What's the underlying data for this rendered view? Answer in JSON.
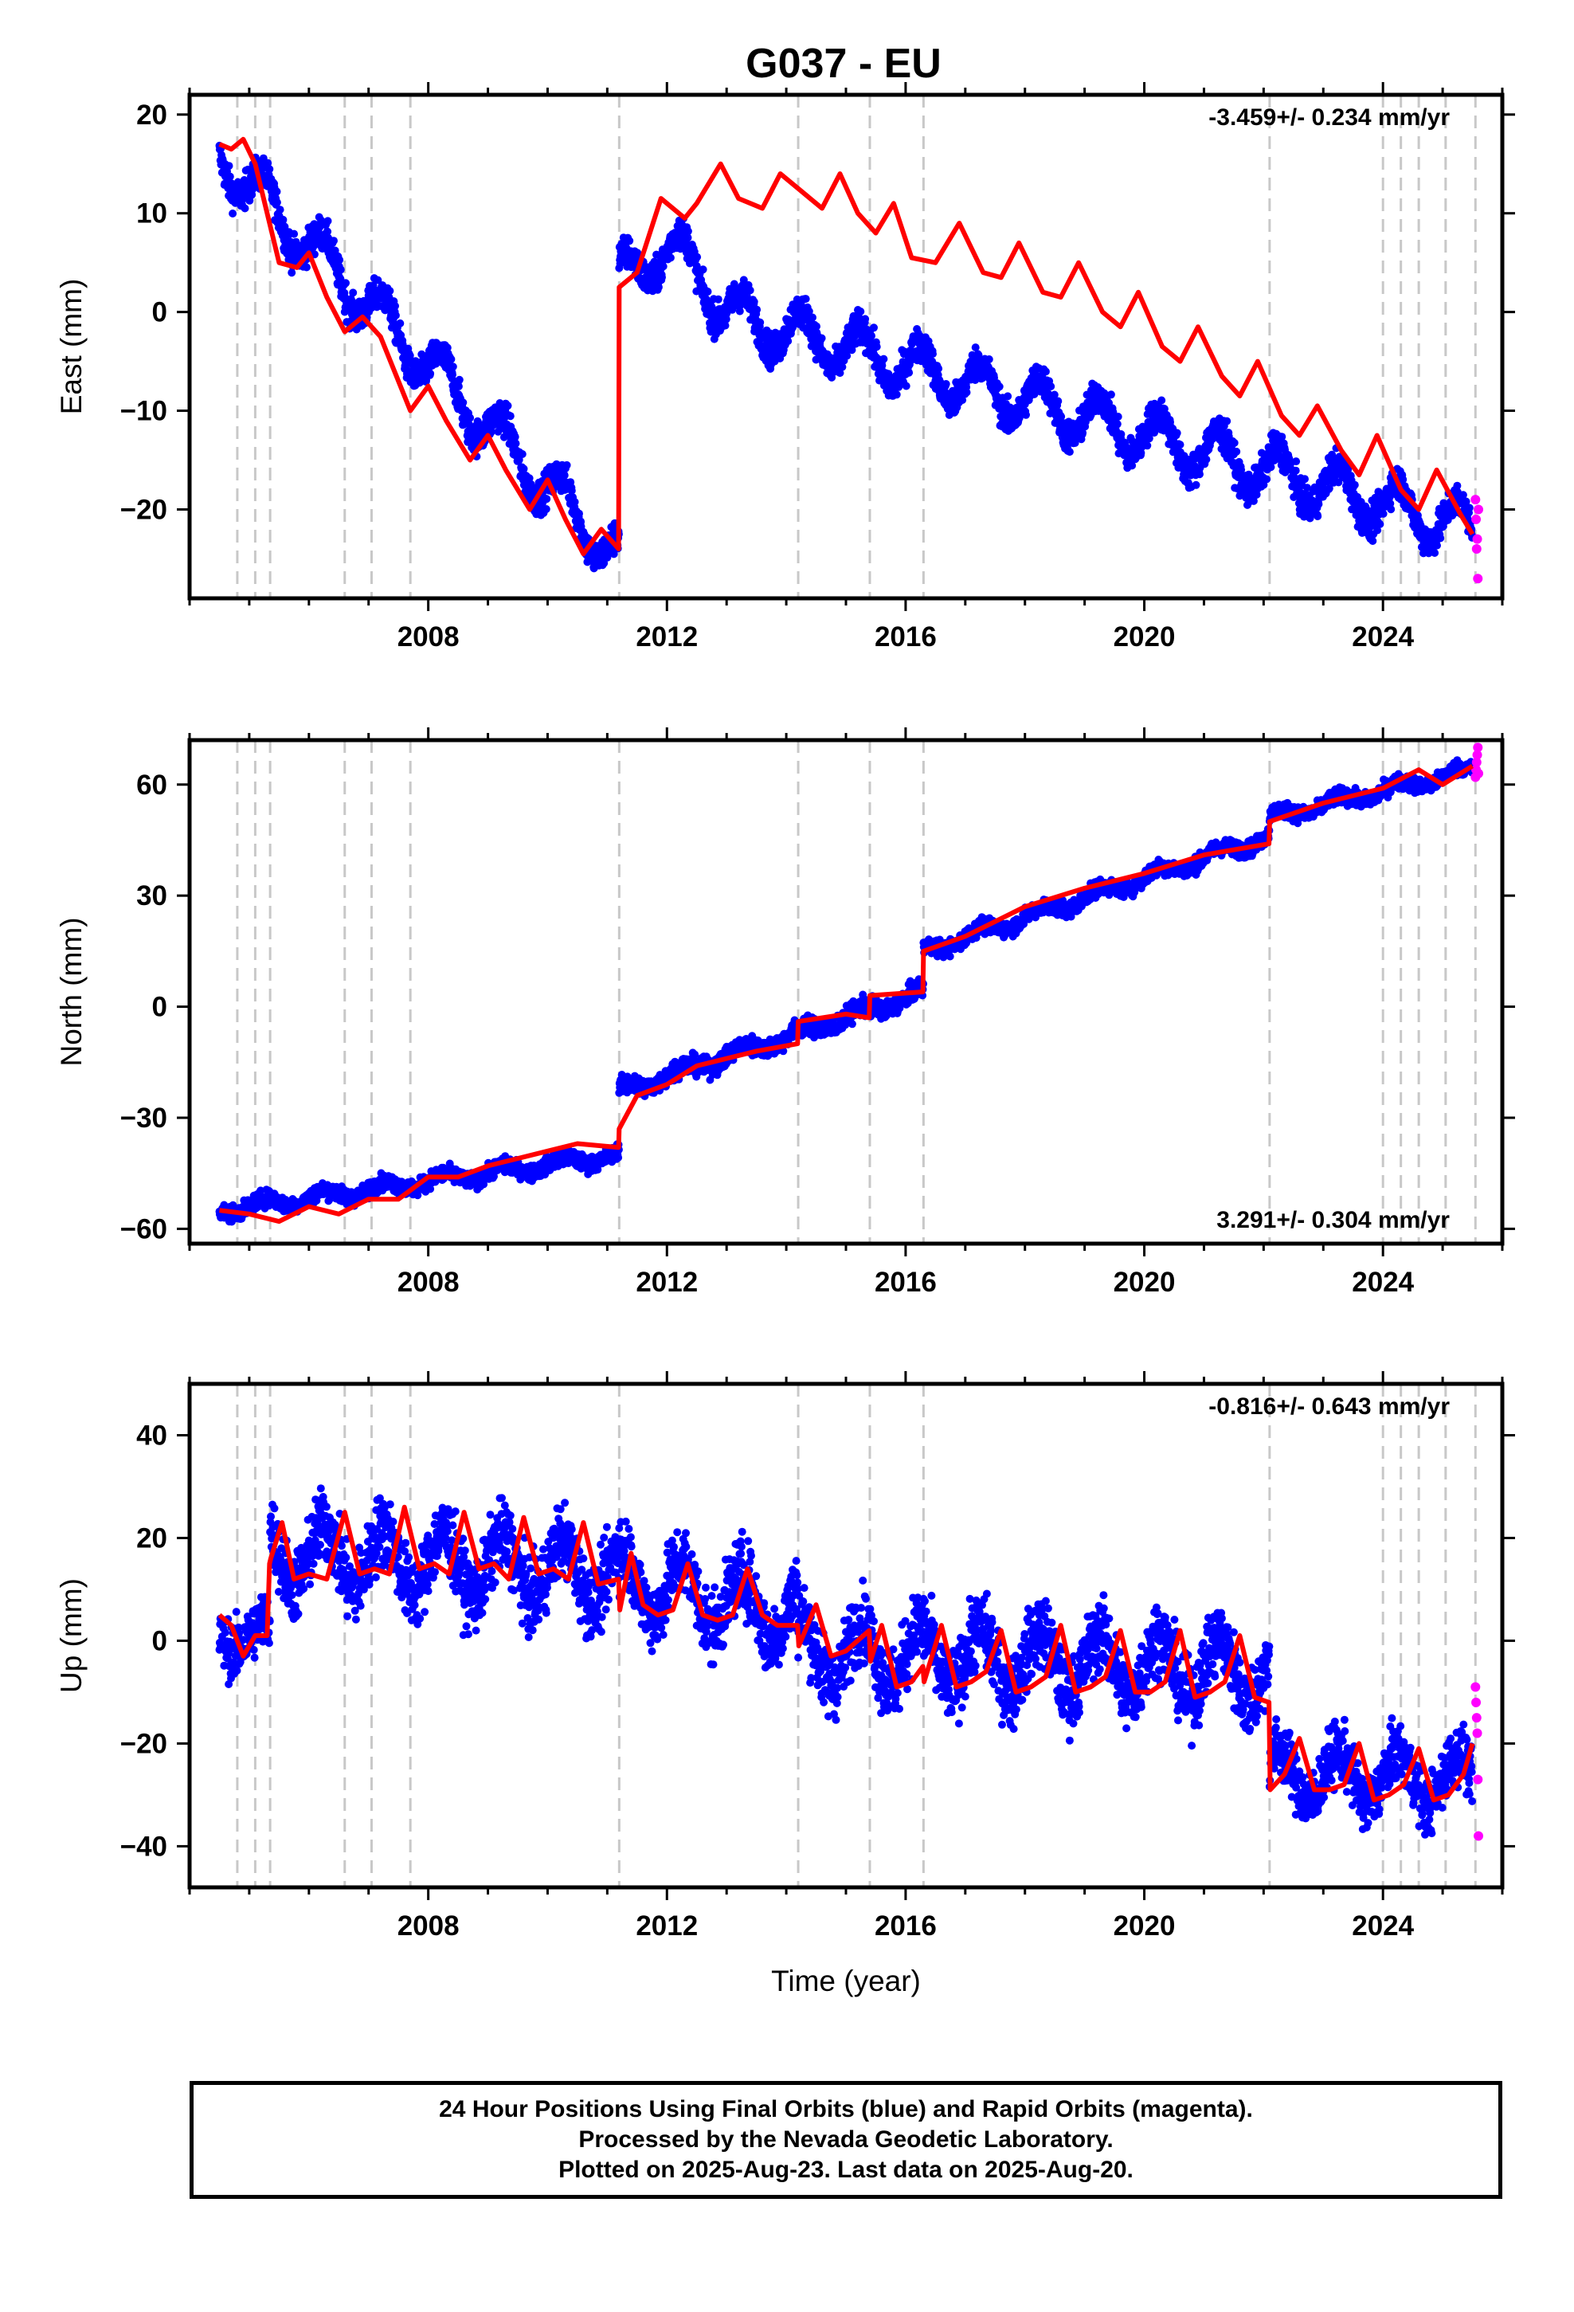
{
  "title": "G037 - EU",
  "footer": {
    "line1": "24 Hour Positions Using Final Orbits (blue) and Rapid Orbits (magenta).",
    "line2": "Processed by the Nevada Geodetic Laboratory.",
    "line3": "Plotted on 2025-Aug-23. Last data on 2025-Aug-20."
  },
  "colors": {
    "final_orbits": "#0000ff",
    "rapid_orbits": "#ff00ff",
    "model": "#ff0000",
    "event_lines": "#c8c8c8"
  },
  "chart_data": [
    {
      "type": "scatter",
      "panel": "east",
      "ylabel": "East (mm)",
      "xlabel": "",
      "rate_text": "-3.459+/- 0.234 mm/yr",
      "rate_position": "top-right",
      "xlim": [
        2004.0,
        2026.0
      ],
      "ylim": [
        -29,
        22
      ],
      "xticks": [
        2008,
        2012,
        2016,
        2020,
        2024
      ],
      "yticks": [
        -20,
        -10,
        0,
        10,
        20
      ],
      "ytick_labels": [
        "−20",
        "−10",
        "0",
        "10",
        "20"
      ],
      "event_lines": [
        2004.8,
        2005.1,
        2005.35,
        2006.6,
        2007.05,
        2007.7,
        2011.2,
        2014.2,
        2015.4,
        2016.3,
        2022.1,
        2024.0,
        2024.3,
        2024.6,
        2025.05,
        2025.55
      ],
      "series": [
        {
          "name": "Final Orbits",
          "role": "points",
          "color": "#0000ff",
          "segments": [
            {
              "t0": 2004.5,
              "t1": 2011.2,
              "y0": 16,
              "y1": -25,
              "amp": 2.5,
              "noise": 1.2
            },
            {
              "t0": 2011.2,
              "t1": 2025.5,
              "y0": 3,
              "y1": -22,
              "amp": 2.5,
              "noise": 1.2
            }
          ],
          "bumps": [
            {
              "t0": 2011.2,
              "t1": 2013.0,
              "dy": 9
            }
          ]
        },
        {
          "name": "Rapid Orbits",
          "role": "rapid",
          "color": "#ff00ff",
          "x": [
            2025.55,
            2025.56,
            2025.57,
            2025.58,
            2025.59,
            2025.6
          ],
          "y": [
            -19,
            -21,
            -24,
            -23,
            -27,
            -20
          ]
        },
        {
          "name": "Model",
          "role": "model",
          "color": "#ff0000",
          "x": [
            2004.5,
            2004.7,
            2004.9,
            2005.1,
            2005.3,
            2005.5,
            2005.8,
            2006.0,
            2006.3,
            2006.6,
            2006.9,
            2007.2,
            2007.5,
            2007.7,
            2008.0,
            2008.3,
            2008.7,
            2009.0,
            2009.3,
            2009.7,
            2010.0,
            2010.3,
            2010.6,
            2010.9,
            2011.19,
            2011.2,
            2011.5,
            2011.9,
            2012.3,
            2012.5,
            2012.9,
            2013.2,
            2013.6,
            2013.9,
            2014.2,
            2014.6,
            2014.9,
            2015.2,
            2015.5,
            2015.8,
            2016.1,
            2016.5,
            2016.9,
            2017.3,
            2017.6,
            2017.9,
            2018.3,
            2018.6,
            2018.9,
            2019.3,
            2019.6,
            2019.9,
            2020.3,
            2020.6,
            2020.9,
            2021.3,
            2021.6,
            2021.9,
            2022.3,
            2022.6,
            2022.9,
            2023.3,
            2023.6,
            2023.9,
            2024.3,
            2024.6,
            2024.9,
            2025.3,
            2025.5
          ],
          "y": [
            17,
            16.5,
            17.5,
            15,
            10,
            5,
            4.5,
            6,
            1.5,
            -2,
            -0.5,
            -2.5,
            -7,
            -10,
            -7.5,
            -11,
            -15,
            -12.5,
            -16,
            -20,
            -17,
            -21,
            -24.5,
            -22,
            -24,
            2.5,
            4,
            11.5,
            9.5,
            11,
            15,
            11.5,
            10.5,
            14,
            12.5,
            10.5,
            14,
            10,
            8,
            11,
            5.5,
            5,
            9,
            4,
            3.5,
            7,
            2,
            1.5,
            5,
            0,
            -1.5,
            2,
            -3.5,
            -5,
            -1.5,
            -6.5,
            -8.5,
            -5,
            -10.5,
            -12.5,
            -9.5,
            -14,
            -16.5,
            -12.5,
            -18,
            -20,
            -16,
            -20.5,
            -22.5
          ]
        }
      ]
    },
    {
      "type": "scatter",
      "panel": "north",
      "ylabel": "North (mm)",
      "xlabel": "",
      "rate_text": "3.291+/- 0.304 mm/yr",
      "rate_position": "bottom-right",
      "xlim": [
        2004.0,
        2026.0
      ],
      "ylim": [
        -64,
        72
      ],
      "xticks": [
        2008,
        2012,
        2016,
        2020,
        2024
      ],
      "yticks": [
        -60,
        -30,
        0,
        30,
        60
      ],
      "ytick_labels": [
        "−60",
        "−30",
        "0",
        "30",
        "60"
      ],
      "event_lines": [
        2004.8,
        2005.1,
        2005.35,
        2006.6,
        2007.05,
        2007.7,
        2011.2,
        2014.2,
        2015.4,
        2016.3,
        2022.1,
        2024.0,
        2024.3,
        2024.6,
        2025.05,
        2025.55
      ],
      "series": [
        {
          "name": "Final Orbits",
          "role": "points",
          "color": "#0000ff",
          "segments": [
            {
              "t0": 2004.5,
              "t1": 2011.2,
              "y0": -55,
              "y1": -40,
              "amp": 1.5,
              "noise": 1.5
            },
            {
              "t0": 2011.2,
              "t1": 2016.3,
              "y0": -23,
              "y1": 4,
              "amp": 1.5,
              "noise": 1.8
            },
            {
              "t0": 2016.3,
              "t1": 2022.1,
              "y0": 15,
              "y1": 46,
              "amp": 1.5,
              "noise": 1.5
            },
            {
              "t0": 2022.1,
              "t1": 2025.5,
              "y0": 51,
              "y1": 64,
              "amp": 1.5,
              "noise": 1.5
            }
          ],
          "bumps": []
        },
        {
          "name": "Rapid Orbits",
          "role": "rapid",
          "color": "#ff00ff",
          "x": [
            2025.55,
            2025.56,
            2025.57,
            2025.58,
            2025.59,
            2025.6
          ],
          "y": [
            62,
            64,
            66,
            68,
            70,
            63
          ]
        },
        {
          "name": "Model",
          "role": "model",
          "color": "#ff0000",
          "x": [
            2004.5,
            2005.0,
            2005.5,
            2006.0,
            2006.5,
            2007.0,
            2007.5,
            2008.0,
            2008.5,
            2009.0,
            2009.5,
            2010.0,
            2010.5,
            2011.19,
            2011.2,
            2011.5,
            2012.0,
            2012.5,
            2013.0,
            2013.5,
            2014.19,
            2014.2,
            2015.0,
            2015.39,
            2015.4,
            2016.29,
            2016.3,
            2017.0,
            2018.0,
            2019.0,
            2020.0,
            2021.0,
            2022.09,
            2022.1,
            2023.0,
            2024.0,
            2024.6,
            2025.0,
            2025.5
          ],
          "y": [
            -55,
            -56,
            -58,
            -54,
            -56,
            -52,
            -52,
            -46,
            -46,
            -43,
            -41,
            -39,
            -37,
            -38,
            -33,
            -24,
            -21,
            -16,
            -14,
            -12,
            -10,
            -4,
            -2,
            -3,
            3,
            4,
            15,
            19,
            27,
            32,
            36,
            41,
            44,
            50,
            55,
            59,
            64,
            60,
            65
          ]
        }
      ]
    },
    {
      "type": "scatter",
      "panel": "up",
      "ylabel": "Up (mm)",
      "xlabel": "Time (year)",
      "rate_text": "-0.816+/- 0.643 mm/yr",
      "rate_position": "top-right",
      "xlim": [
        2004.0,
        2026.0
      ],
      "ylim": [
        -48,
        50
      ],
      "xticks": [
        2008,
        2012,
        2016,
        2020,
        2024
      ],
      "yticks": [
        -40,
        -20,
        0,
        20,
        40
      ],
      "ytick_labels": [
        "−40",
        "−20",
        "0",
        "20",
        "40"
      ],
      "event_lines": [
        2004.8,
        2005.1,
        2005.35,
        2006.6,
        2007.05,
        2007.7,
        2011.2,
        2014.2,
        2015.4,
        2016.3,
        2022.1,
        2024.0,
        2024.3,
        2024.6,
        2025.05,
        2025.55
      ],
      "series": [
        {
          "name": "Final Orbits",
          "role": "points",
          "color": "#0000ff",
          "segments": [
            {
              "t0": 2004.5,
              "t1": 2005.35,
              "y0": 1,
              "y1": 1,
              "amp": 3,
              "noise": 4
            },
            {
              "t0": 2005.35,
              "t1": 2011.2,
              "y0": 17,
              "y1": 13,
              "amp": 6,
              "noise": 5
            },
            {
              "t0": 2011.2,
              "t1": 2014.2,
              "y0": 12,
              "y1": 5,
              "amp": 6,
              "noise": 5
            },
            {
              "t0": 2014.2,
              "t1": 2022.1,
              "y0": -2,
              "y1": -6,
              "amp": 6,
              "noise": 5
            },
            {
              "t0": 2022.1,
              "t1": 2025.5,
              "y0": -26,
              "y1": -27,
              "amp": 5,
              "noise": 4
            }
          ],
          "bumps": []
        },
        {
          "name": "Rapid Orbits",
          "role": "rapid",
          "color": "#ff00ff",
          "x": [
            2025.55,
            2025.56,
            2025.57,
            2025.58,
            2025.59,
            2025.6
          ],
          "y": [
            -9,
            -12,
            -15,
            -18,
            -27,
            -38
          ]
        },
        {
          "name": "Model",
          "role": "model",
          "color": "#ff0000",
          "x": [
            2004.5,
            2004.7,
            2004.9,
            2005.1,
            2005.3,
            2005.34,
            2005.36,
            2005.55,
            2005.75,
            2006.0,
            2006.3,
            2006.6,
            2006.85,
            2007.1,
            2007.35,
            2007.6,
            2007.85,
            2008.1,
            2008.35,
            2008.6,
            2008.85,
            2009.1,
            2009.35,
            2009.6,
            2009.85,
            2010.1,
            2010.35,
            2010.6,
            2010.85,
            2011.19,
            2011.21,
            2011.4,
            2011.6,
            2011.85,
            2012.1,
            2012.35,
            2012.6,
            2012.85,
            2013.1,
            2013.35,
            2013.6,
            2013.85,
            2014.19,
            2014.21,
            2014.5,
            2014.75,
            2015.0,
            2015.39,
            2015.41,
            2015.6,
            2015.85,
            2016.1,
            2016.29,
            2016.31,
            2016.6,
            2016.85,
            2017.1,
            2017.35,
            2017.6,
            2017.85,
            2018.1,
            2018.35,
            2018.6,
            2018.85,
            2019.1,
            2019.35,
            2019.6,
            2019.85,
            2020.1,
            2020.35,
            2020.6,
            2020.85,
            2021.1,
            2021.35,
            2021.6,
            2021.85,
            2022.09,
            2022.11,
            2022.35,
            2022.6,
            2022.85,
            2023.1,
            2023.35,
            2023.6,
            2023.85,
            2024.1,
            2024.35,
            2024.6,
            2024.85,
            2025.1,
            2025.35,
            2025.5
          ],
          "y": [
            5,
            3,
            -3,
            1,
            1,
            15,
            16,
            23,
            12,
            13,
            12,
            25,
            13,
            14,
            13,
            26,
            14,
            15,
            13,
            25,
            14,
            15,
            12,
            24,
            13,
            14,
            12,
            23,
            11,
            12,
            6,
            17,
            7,
            5,
            6,
            15,
            5,
            4,
            5,
            14,
            5,
            3,
            3,
            -1,
            7,
            -3,
            -2,
            2,
            -4,
            3,
            -9,
            -8,
            -5,
            -8,
            3,
            -9,
            -8,
            -6,
            2,
            -10,
            -9,
            -7,
            3,
            -10,
            -9,
            -7,
            2,
            -10,
            -10,
            -8,
            2,
            -11,
            -10,
            -8,
            1,
            -11,
            -12,
            -29,
            -26,
            -19,
            -29,
            -29,
            -28,
            -20,
            -31,
            -30,
            -28,
            -21,
            -31,
            -30,
            -26,
            -20
          ]
        }
      ]
    }
  ]
}
